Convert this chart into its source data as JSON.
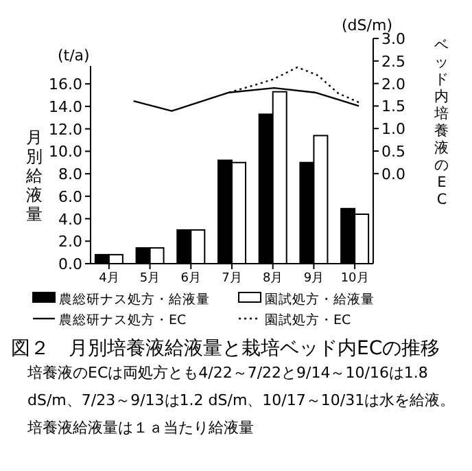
{
  "chart_data": {
    "type": "bar",
    "title": "図２　月別培養液給液量と栽培ベッド内ECの推移",
    "ylabel": "月別給液量",
    "y2label": "ベッド内培養液のEC",
    "annotations": [
      "(t/a)",
      "(dS/m)",
      "培養液のECは両処方とも4/22～7/22と9/14～10/16は1.8 dS/m、7/23～9/13は1.2 dS/m、10/17～10/31は水を給液。培養液給液量は１ａ当たり給液量"
    ],
    "x": [
      4,
      5,
      6,
      7,
      8,
      9,
      10
    ],
    "xlim": [
      3.55,
      10.45
    ],
    "xticks": [
      {
        "value": 4,
        "label": "4月"
      },
      {
        "value": 5,
        "label": "5月"
      },
      {
        "value": 6,
        "label": "6月"
      },
      {
        "value": 7,
        "label": "7月"
      },
      {
        "value": 8,
        "label": "8月"
      },
      {
        "value": 9,
        "label": "9月"
      },
      {
        "value": 10,
        "label": "10月"
      }
    ],
    "ylim": [
      0,
      17.6
    ],
    "yticks": [
      {
        "value": 0,
        "label": "0.0"
      },
      {
        "value": 2,
        "label": "2.0"
      },
      {
        "value": 4,
        "label": "4.0"
      },
      {
        "value": 6,
        "label": "6.0"
      },
      {
        "value": 8,
        "label": "8.0"
      },
      {
        "value": 10,
        "label": "10.0"
      },
      {
        "value": 12,
        "label": "12.0"
      },
      {
        "value": 14,
        "label": "14.0"
      },
      {
        "value": 16,
        "label": "16.0"
      }
    ],
    "y2lim": [
      -2,
      3
    ],
    "y2ticks": [
      {
        "value": 0,
        "label": "0.0"
      },
      {
        "value": 0.5,
        "label": "0.5"
      },
      {
        "value": 1,
        "label": "1.0"
      },
      {
        "value": 1.5,
        "label": "1.5"
      },
      {
        "value": 2,
        "label": "2.0"
      },
      {
        "value": 2.5,
        "label": "2.5"
      },
      {
        "value": 3,
        "label": "3.0"
      }
    ],
    "series": [
      {
        "name": "農総研ナス処方・給液量",
        "color": "#000000",
        "values": [
          0.8,
          1.4,
          3.0,
          9.2,
          13.3,
          9.0,
          4.9
        ]
      },
      {
        "name": "園試処方・給液量",
        "color": "#ffffff",
        "values": [
          0.8,
          1.4,
          3.0,
          9.0,
          15.3,
          11.4,
          4.4
        ]
      },
      {
        "name": "農総研ナス処方・EC",
        "type": "line",
        "axis": "y2",
        "color": "#000000",
        "line_style": "solid",
        "x": [
          4.6,
          5.53,
          6.93,
          8.03,
          9.03,
          10.1
        ],
        "values": [
          1.61,
          1.39,
          1.8,
          1.9,
          1.8,
          1.5
        ]
      },
      {
        "name": "園試処方・EC",
        "type": "line",
        "axis": "y2",
        "color": "#000000",
        "line_style": "dotted",
        "x": [
          6.93,
          7.5,
          8.0,
          8.6,
          9.1,
          9.6,
          10.1
        ],
        "values": [
          1.8,
          1.95,
          2.09,
          2.36,
          2.18,
          1.78,
          1.58
        ]
      }
    ],
    "grid": false,
    "legend": "bottom",
    "marker": "none"
  }
}
